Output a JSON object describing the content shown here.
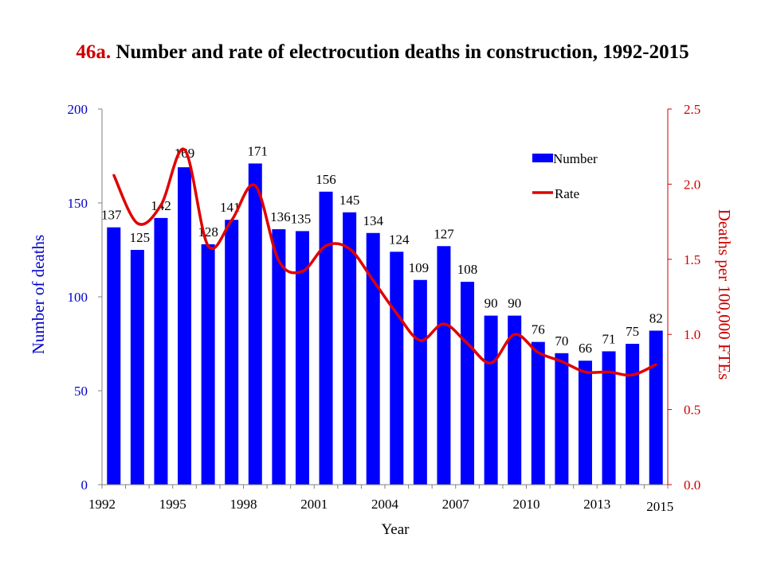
{
  "title_prefix": "46a.",
  "title_text": "Number and rate of electrocution deaths in construction, 1992-2015",
  "chart_data": {
    "type": "bar",
    "x": [
      1992,
      1993,
      1994,
      1995,
      1996,
      1997,
      1998,
      1999,
      2000,
      2001,
      2002,
      2003,
      2004,
      2005,
      2006,
      2007,
      2008,
      2009,
      2010,
      2011,
      2012,
      2013,
      2014,
      2015
    ],
    "x_tick_labels": [
      "1992",
      "1995",
      "1998",
      "2001",
      "2004",
      "2007",
      "2010",
      "2013",
      "2015"
    ],
    "xlabel": "Year",
    "ylabel_left": "Number of deaths",
    "ylabel_right": "Deaths per 100,000 FTEs",
    "ylim_left": [
      0,
      200
    ],
    "ylim_right": [
      0,
      2.5
    ],
    "yticks_left": [
      "0",
      "50",
      "100",
      "150",
      "200"
    ],
    "yticks_right": [
      "0.0",
      "0.5",
      "1.0",
      "1.5",
      "2.0",
      "2.5"
    ],
    "grid": false,
    "legend_position": "top-right",
    "series": [
      {
        "name": "Number",
        "type": "bar",
        "axis": "left",
        "color": "#0000ff",
        "values": [
          137,
          125,
          142,
          169,
          128,
          141,
          171,
          136,
          135,
          156,
          145,
          134,
          124,
          109,
          127,
          108,
          90,
          90,
          76,
          70,
          66,
          71,
          75,
          82
        ]
      },
      {
        "name": "Rate",
        "type": "line",
        "axis": "right",
        "color": "#e00000",
        "values": [
          2.06,
          1.74,
          1.86,
          2.23,
          1.59,
          1.76,
          1.99,
          1.49,
          1.42,
          1.59,
          1.57,
          1.36,
          1.14,
          0.96,
          1.07,
          0.94,
          0.81,
          1.0,
          0.88,
          0.82,
          0.75,
          0.75,
          0.73,
          0.8
        ]
      }
    ]
  },
  "colors": {
    "left_axis": "#0000cc",
    "right_axis": "#cc0000",
    "title_prefix": "#cc0000"
  }
}
